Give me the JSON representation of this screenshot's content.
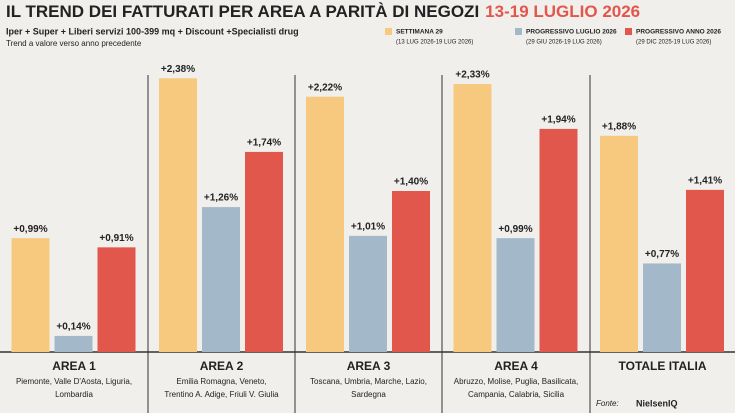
{
  "chart_data": {
    "type": "bar",
    "title": "IL TREND DEI FATTURATI PER AREA A PARITÀ DI NEGOZI",
    "title_highlight": "13-19 LUGLIO 2026",
    "subtitle": "Iper + Super + Liberi servizi 100-399 mq + Discount +Specialisti drug",
    "note": "Trend a valore verso anno precedente",
    "categories": [
      "AREA 1",
      "AREA 2",
      "AREA 3",
      "AREA 4",
      "TOTALE ITALIA"
    ],
    "regions": [
      [
        "Piemonte, Valle D'Aosta, Liguria,",
        "Lombardia"
      ],
      [
        "Emilia Romagna, Veneto,",
        "Trentino A. Adige, Friuli V. Giulia"
      ],
      [
        "Toscana, Umbria, Marche, Lazio,",
        "Sardegna"
      ],
      [
        "Abruzzo, Molise, Puglia, Basilicata,",
        "Campania, Calabria, Sicilia"
      ],
      []
    ],
    "series": [
      {
        "name": "SETTIMANA 29",
        "period": "(13 LUG 2026-19 LUG 2026)",
        "color": "#f7c97e",
        "values": [
          0.99,
          2.38,
          2.22,
          2.33,
          1.88
        ],
        "value_labels": [
          "+0,99%",
          "+2,38%",
          "+2,22%",
          "+2,33%",
          "+1,88%"
        ]
      },
      {
        "name": "PROGRESSIVO LUGLIO 2026",
        "period": "(29 GIU 2026-19 LUG 2026)",
        "color": "#a3b9c9",
        "values": [
          0.14,
          1.26,
          1.01,
          0.99,
          0.77
        ],
        "value_labels": [
          "+0,14%",
          "+1,26%",
          "+1,01%",
          "+0,99%",
          "+0,77%"
        ]
      },
      {
        "name": "PROGRESSIVO ANNO 2026",
        "period": "(29 DIC 2025-19 LUG 2026)",
        "color": "#e2574c",
        "values": [
          0.91,
          1.74,
          1.4,
          1.94,
          1.41
        ],
        "value_labels": [
          "+0,91%",
          "+1,74%",
          "+1,40%",
          "+1,94%",
          "+1,41%"
        ]
      }
    ],
    "source_label": "Fonte:",
    "source": "NielsenIQ"
  }
}
